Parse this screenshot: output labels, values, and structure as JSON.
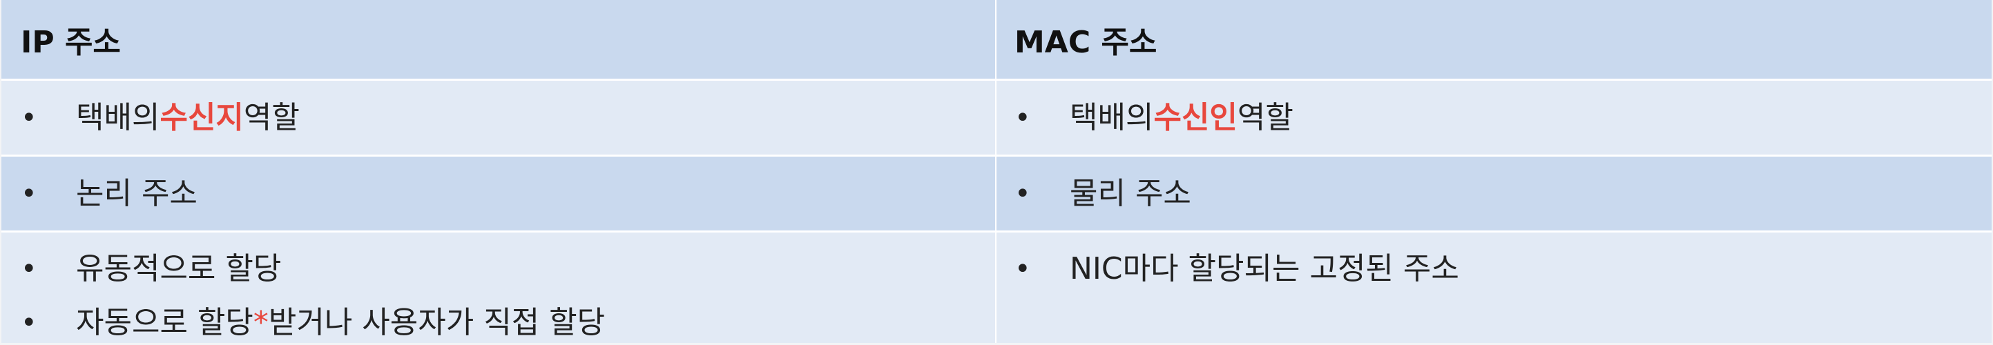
{
  "headers": {
    "left": "IP 주소",
    "right": "MAC 주소"
  },
  "bullet_symbol": "•",
  "rows": {
    "row1": {
      "left": {
        "prefix": "택배의 ",
        "highlight": "수신지",
        "suffix": " 역할"
      },
      "right": {
        "prefix": "택배의 ",
        "highlight": "수신인",
        "suffix": " 역할"
      }
    },
    "row2": {
      "left": "논리 주소",
      "right": "물리 주소"
    },
    "row3": {
      "left_item1": "유동적으로 할당",
      "left_item2": {
        "prefix": "자동으로 할당",
        "star": "*",
        "suffix": "받거나 사용자가 직접 할당"
      },
      "right": "NIC마다 할당되는 고정된 주소"
    }
  },
  "colors": {
    "header_bg": "#c9d9ee",
    "row_light_bg": "#e2eaf5",
    "highlight": "#e8473d"
  }
}
